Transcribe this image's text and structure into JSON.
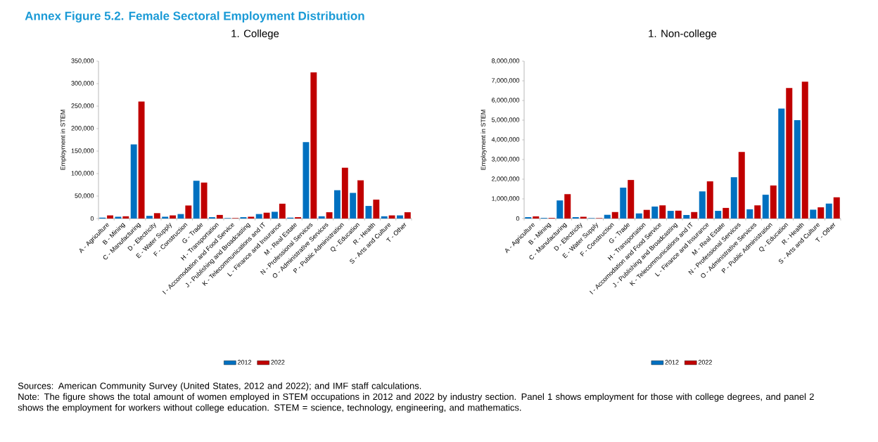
{
  "chart_data": [
    {
      "type": "bar",
      "title": "Annex Figure 5.2. Female Sectoral Employment Distribution",
      "subtitle": "1.    College",
      "ylabel": "Employment in STEM",
      "categories": [
        "A - Agriculture",
        "B - Mining",
        "C - Manufacturing",
        "D - Electricity",
        "E - Water Supply",
        "F - Construction",
        "G - Trade",
        "H - Transportation",
        "I - Accomodation and Food Service",
        "J - Publishing and Broadcasting",
        "K - Telecommunications and IT",
        "L - Finance and Insurance",
        "M - Real Estate",
        "N - Professional Services",
        "O - Administrative Services",
        "P - Public Administration",
        "Q - Education",
        "R - Health",
        "S - Arts and Culture",
        "T - Other"
      ],
      "series": [
        {
          "name": "2012",
          "color": "#0070c0",
          "values": [
            2000,
            4000,
            165000,
            6000,
            4000,
            10000,
            84000,
            3000,
            1000,
            3000,
            10000,
            15000,
            2000,
            170000,
            5000,
            63000,
            57000,
            28000,
            5000,
            7000
          ]
        },
        {
          "name": "2022",
          "color": "#c00000",
          "values": [
            7000,
            5000,
            260000,
            12000,
            7000,
            29000,
            80000,
            8000,
            1000,
            4000,
            13000,
            33000,
            3000,
            325000,
            14000,
            113000,
            85000,
            42000,
            7000,
            14000
          ]
        }
      ],
      "ylim": [
        0,
        350000
      ],
      "yticks": [
        {
          "value": 0,
          "label": "0"
        },
        {
          "value": 50000,
          "label": "50,000"
        },
        {
          "value": 100000,
          "label": "100,000"
        },
        {
          "value": 150000,
          "label": "150,000"
        },
        {
          "value": 200000,
          "label": "200,000"
        },
        {
          "value": 250000,
          "label": "250,000"
        },
        {
          "value": 300000,
          "label": "300,000"
        },
        {
          "value": 350000,
          "label": "350,000"
        }
      ],
      "legend": "bottom"
    },
    {
      "type": "bar",
      "subtitle": "1.    Non-college",
      "ylabel": "Employment in STEM",
      "categories": [
        "A - Agriculture",
        "B - Mining",
        "C - Manufacturing",
        "D - Electricity",
        "E - Water Supply",
        "F - Construction",
        "G - Trade",
        "H - Transportation",
        "I - Accomodation and Food Service",
        "J - Publishing and Broadcasting",
        "K - Telecommunications and IT",
        "L - Finance and Insurance",
        "M - Real Estate",
        "N - Professional Services",
        "O - Administrative Services",
        "P - Public Administration",
        "Q - Education",
        "R - Health",
        "S - Arts and Culture",
        "T - Other"
      ],
      "series": [
        {
          "name": "2012",
          "color": "#0070c0",
          "values": [
            70000,
            30000,
            920000,
            70000,
            20000,
            190000,
            1570000,
            260000,
            610000,
            390000,
            180000,
            1380000,
            390000,
            2100000,
            470000,
            1210000,
            5590000,
            5000000,
            450000,
            760000
          ]
        },
        {
          "name": "2022",
          "color": "#c00000",
          "values": [
            110000,
            30000,
            1240000,
            90000,
            20000,
            330000,
            1960000,
            440000,
            670000,
            400000,
            330000,
            1890000,
            540000,
            3380000,
            670000,
            1680000,
            6630000,
            6960000,
            570000,
            1080000
          ]
        }
      ],
      "ylim": [
        0,
        8000000
      ],
      "yticks": [
        {
          "value": 0,
          "label": "0"
        },
        {
          "value": 1000000,
          "label": "1,000,000"
        },
        {
          "value": 2000000,
          "label": "2,000,000"
        },
        {
          "value": 3000000,
          "label": "3,000,000"
        },
        {
          "value": 4000000,
          "label": "4,000,000"
        },
        {
          "value": 5000000,
          "label": "5,000,000"
        },
        {
          "value": 6000000,
          "label": "6,000,000"
        },
        {
          "value": 7000000,
          "label": "7,000,000"
        },
        {
          "value": 8000000,
          "label": "8,000,000"
        }
      ],
      "legend": "bottom",
      "annotations": [
        "Sources: American Community Survey (United States, 2012 and 2022); and IMF staff calculations.",
        "Note: The figure shows the total amount of women employed in STEM occupations in 2012 and 2022 by industry section. Panel 1 shows employment for those with college degrees, and panel 2 shows the employment for workers without college education. STEM = science, technology, engineering, and mathematics."
      ]
    }
  ]
}
